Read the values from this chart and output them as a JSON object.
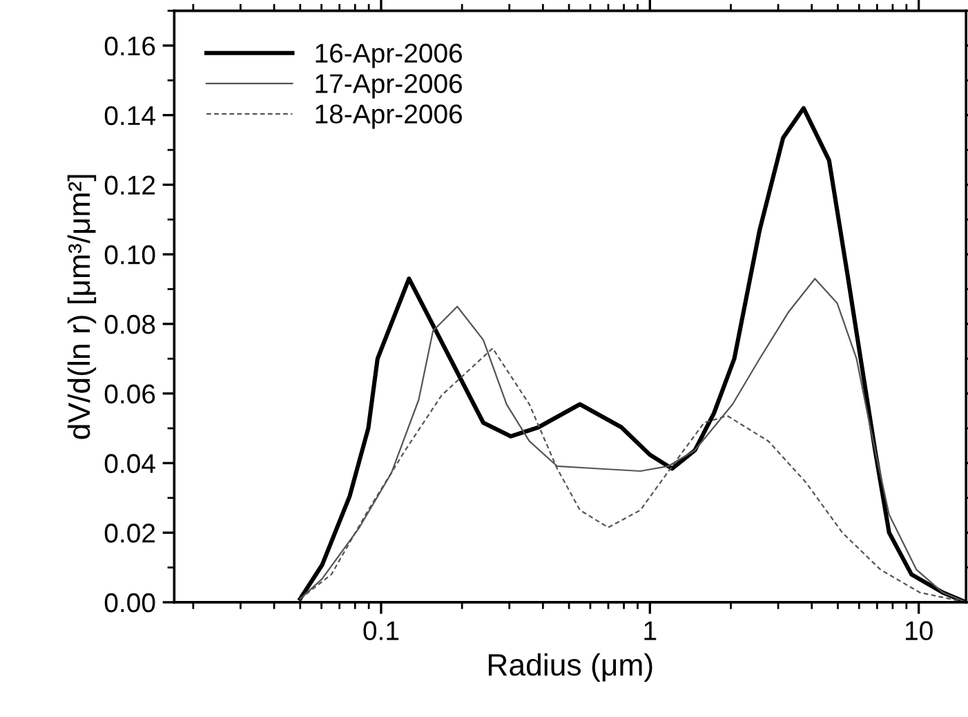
{
  "chart_data": {
    "type": "line",
    "xlabel": "Radius (μm)",
    "ylabel": "dV/d(ln r) [μm³/μm²]",
    "log": "x",
    "xlim": [
      0.017,
      15
    ],
    "xticks": [
      0.1,
      1,
      10
    ],
    "ylim": [
      0,
      0.17
    ],
    "yticks": [
      {
        "value": 0,
        "label": "0.00"
      },
      {
        "value": 0.02,
        "label": "0.02"
      },
      {
        "value": 0.04,
        "label": "0.04"
      },
      {
        "value": 0.06,
        "label": "0.06"
      },
      {
        "value": 0.08,
        "label": "0.08"
      },
      {
        "value": 0.1,
        "label": "0.10"
      },
      {
        "value": 0.12,
        "label": "0.12"
      },
      {
        "value": 0.14,
        "label": "0.14"
      },
      {
        "value": 0.16,
        "label": "0.16"
      }
    ],
    "grid": false,
    "legend": "top left",
    "marker": "none",
    "series": [
      {
        "name": "16-Apr-2006",
        "color": "#000000",
        "line_style": "solid",
        "x": [
          0.05,
          0.0603,
          0.0764,
          0.0896,
          0.097,
          0.127,
          0.24,
          0.304,
          0.385,
          0.549,
          0.783,
          1.0,
          1.21,
          1.47,
          1.73,
          2.06,
          2.56,
          3.13,
          3.73,
          4.64,
          5.44,
          6.08,
          6.88,
          7.76,
          9.4,
          12.3,
          15.0
        ],
        "values": [
          0.001,
          0.0107,
          0.0305,
          0.05,
          0.07,
          0.093,
          0.0516,
          0.0477,
          0.0503,
          0.0569,
          0.0503,
          0.0424,
          0.0384,
          0.0437,
          0.0543,
          0.07,
          0.107,
          0.1335,
          0.142,
          0.127,
          0.0939,
          0.07,
          0.0437,
          0.02,
          0.008,
          0.0028,
          0.0
        ]
      },
      {
        "name": "17-Apr-2006",
        "color": "#555555",
        "line_style": "solid",
        "x": [
          0.05,
          0.0603,
          0.0827,
          0.109,
          0.138,
          0.156,
          0.192,
          0.24,
          0.293,
          0.356,
          0.452,
          0.644,
          0.922,
          1.17,
          1.47,
          2.03,
          2.56,
          3.27,
          4.11,
          4.97,
          5.87,
          6.6,
          7.76,
          9.8,
          12.3,
          15.0
        ],
        "values": [
          0.001,
          0.0067,
          0.0213,
          0.037,
          0.0582,
          0.078,
          0.085,
          0.0754,
          0.0569,
          0.0463,
          0.0391,
          0.0384,
          0.0377,
          0.0391,
          0.0437,
          0.0569,
          0.07,
          0.0833,
          0.093,
          0.086,
          0.07,
          0.0503,
          0.0252,
          0.0094,
          0.0028,
          0.0
        ]
      },
      {
        "name": "18-Apr-2006",
        "color": "#555555",
        "line_style": "dashed",
        "x": [
          0.05,
          0.0653,
          0.0896,
          0.123,
          0.168,
          0.26,
          0.356,
          0.452,
          0.549,
          0.7,
          0.922,
          1.26,
          1.59,
          1.94,
          2.76,
          3.8,
          5.2,
          7.2,
          10.1,
          15.0
        ],
        "values": [
          0.001,
          0.008,
          0.0265,
          0.0437,
          0.0595,
          0.073,
          0.0569,
          0.0384,
          0.0265,
          0.0215,
          0.0265,
          0.041,
          0.0516,
          0.0536,
          0.0463,
          0.0345,
          0.02,
          0.0094,
          0.0028,
          0.0
        ]
      }
    ]
  }
}
